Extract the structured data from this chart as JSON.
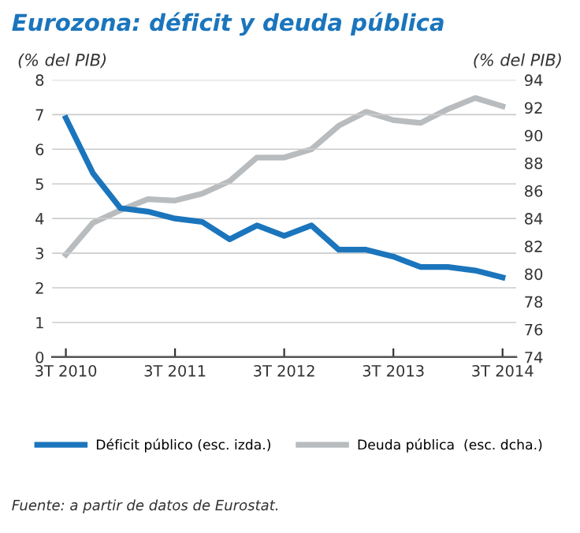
{
  "chart_data": {
    "type": "line",
    "title": "Eurozona: déficit y deuda pública",
    "ylabel": "(% del PIB)",
    "y2label": "(% del PIB)",
    "categories": [
      "3T 2010",
      null,
      null,
      null,
      "3T 2011",
      null,
      null,
      null,
      "3T 2012",
      null,
      null,
      null,
      "3T 2013",
      null,
      null,
      null,
      "3T 2014"
    ],
    "series": [
      {
        "name": "Déficit público (esc. izda.)",
        "color": "#1b75bc",
        "values": [
          6.9,
          5.3,
          4.3,
          4.2,
          4.0,
          3.9,
          3.4,
          3.8,
          3.5,
          3.8,
          3.1,
          3.1,
          2.9,
          2.6,
          2.6,
          2.5,
          2.3
        ]
      },
      {
        "name": "Deuda pública  (esc. dcha.)",
        "color": "#b8bcbf",
        "axis": "y2",
        "values": [
          81.4,
          83.7,
          84.6,
          85.4,
          85.3,
          85.8,
          86.7,
          88.4,
          88.4,
          89.0,
          90.7,
          91.7,
          91.1,
          90.9,
          91.9,
          92.7,
          92.1
        ]
      }
    ],
    "ylim": [
      0,
      8
    ],
    "yticks": [
      0,
      1,
      2,
      3,
      4,
      5,
      6,
      7,
      8
    ],
    "y2lim": [
      74,
      94
    ],
    "y2ticks": [
      74,
      76,
      78,
      80,
      82,
      84,
      86,
      88,
      90,
      92,
      94
    ],
    "grid": "y",
    "legend": "bottom",
    "marker": "none",
    "line_style": "solid",
    "annotations": [
      "Fuente: a partir de datos de Eurostat."
    ]
  }
}
